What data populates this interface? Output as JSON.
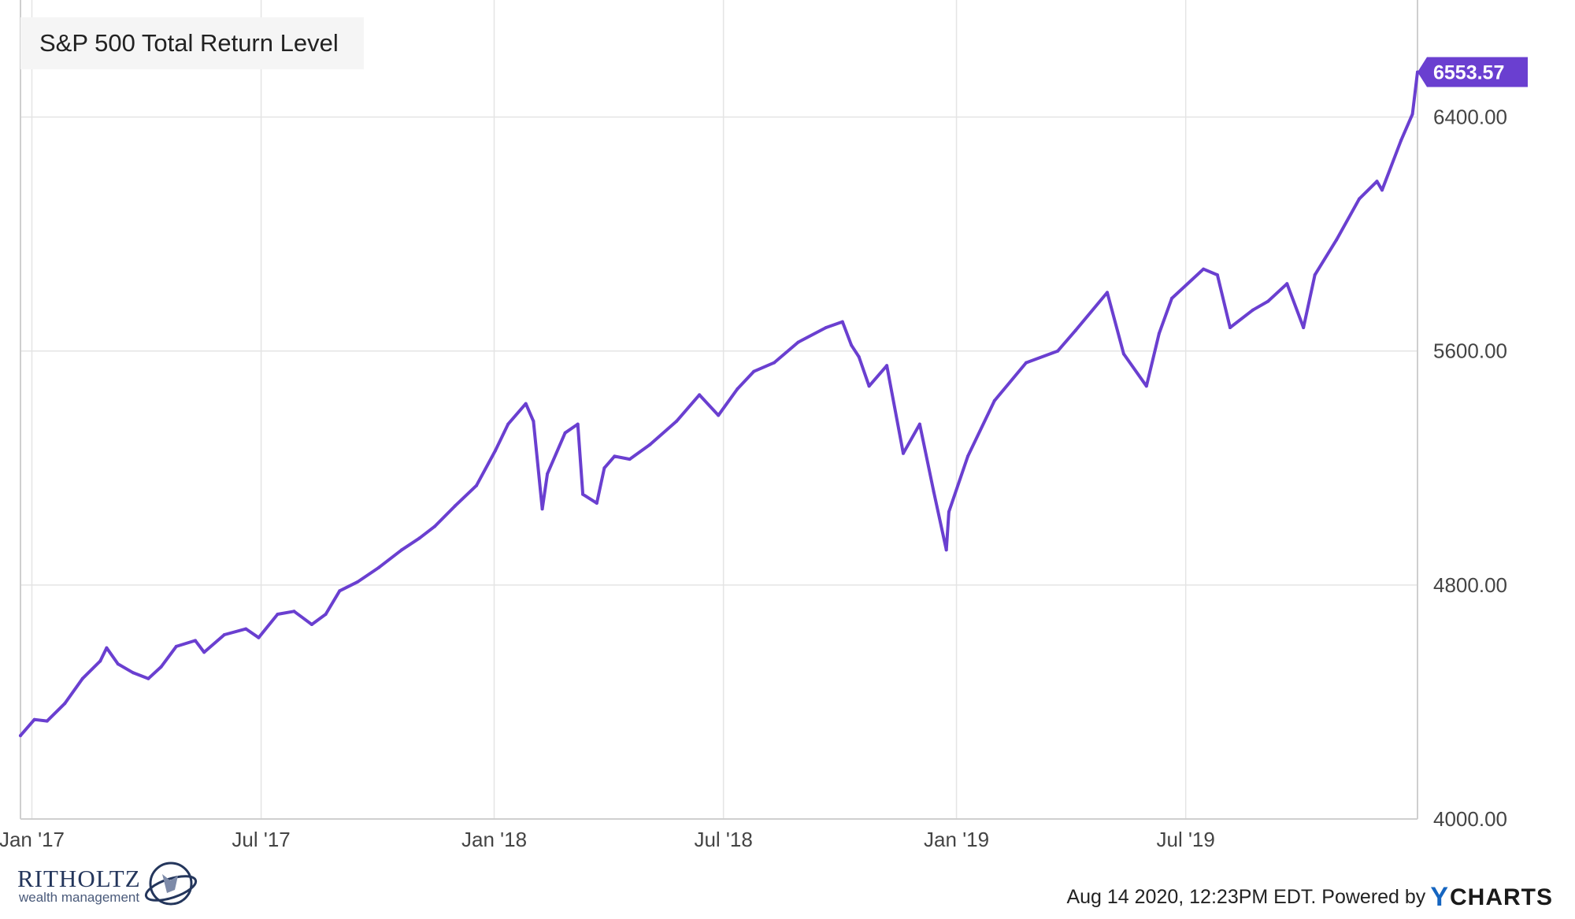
{
  "chart_data": {
    "type": "line",
    "title": "S&P 500 Total Return Level",
    "x_tick_labels": [
      "Jan '17",
      "Jul '17",
      "Jan '18",
      "Jul '18",
      "Jan '19",
      "Jul '19"
    ],
    "y_tick_labels": [
      "4000.00",
      "4800.00",
      "5600.00",
      "6400.00"
    ],
    "y_ticks": [
      4000,
      4800,
      5600,
      6400
    ],
    "ylim": [
      4000,
      6800
    ],
    "xlim": [
      "2016-12-23",
      "2019-12-31"
    ],
    "grid": true,
    "series": [
      {
        "color": "#6a3fd0",
        "last_value_label": "6553.57",
        "x": [
          "2016-12-23",
          "2017-01-03",
          "2017-01-13",
          "2017-01-27",
          "2017-02-10",
          "2017-02-24",
          "2017-03-01",
          "2017-03-10",
          "2017-03-22",
          "2017-04-03",
          "2017-04-13",
          "2017-04-25",
          "2017-05-10",
          "2017-05-17",
          "2017-06-02",
          "2017-06-19",
          "2017-06-29",
          "2017-07-14",
          "2017-07-27",
          "2017-08-10",
          "2017-08-21",
          "2017-09-01",
          "2017-09-15",
          "2017-10-02",
          "2017-10-20",
          "2017-11-03",
          "2017-11-15",
          "2017-12-01",
          "2017-12-18",
          "2018-01-02",
          "2018-01-12",
          "2018-01-26",
          "2018-02-01",
          "2018-02-08",
          "2018-02-12",
          "2018-02-26",
          "2018-03-08",
          "2018-03-12",
          "2018-03-23",
          "2018-03-29",
          "2018-04-06",
          "2018-04-18",
          "2018-05-04",
          "2018-05-25",
          "2018-06-12",
          "2018-06-27",
          "2018-07-12",
          "2018-07-25",
          "2018-08-10",
          "2018-08-29",
          "2018-09-20",
          "2018-10-03",
          "2018-10-10",
          "2018-10-16",
          "2018-10-24",
          "2018-11-07",
          "2018-11-20",
          "2018-12-03",
          "2018-12-14",
          "2018-12-24",
          "2018-12-26",
          "2019-01-10",
          "2019-01-31",
          "2019-02-25",
          "2019-03-22",
          "2019-04-05",
          "2019-04-30",
          "2019-05-13",
          "2019-05-31",
          "2019-06-10",
          "2019-06-20",
          "2019-07-15",
          "2019-07-26",
          "2019-08-05",
          "2019-08-23",
          "2019-09-04",
          "2019-09-19",
          "2019-10-02",
          "2019-10-11",
          "2019-10-28",
          "2019-11-15",
          "2019-11-29",
          "2019-12-03",
          "2019-12-18",
          "2019-12-27",
          "2019-12-31"
        ],
        "values": [
          4285,
          4340,
          4335,
          4395,
          4480,
          4540,
          4585,
          4530,
          4500,
          4480,
          4520,
          4590,
          4610,
          4570,
          4630,
          4650,
          4620,
          4700,
          4710,
          4665,
          4700,
          4780,
          4810,
          4860,
          4920,
          4960,
          5000,
          5070,
          5140,
          5260,
          5350,
          5420,
          5360,
          5060,
          5180,
          5320,
          5350,
          5110,
          5080,
          5200,
          5240,
          5230,
          5280,
          5360,
          5450,
          5380,
          5470,
          5530,
          5560,
          5630,
          5680,
          5700,
          5620,
          5580,
          5480,
          5550,
          5250,
          5350,
          5120,
          4920,
          5050,
          5240,
          5430,
          5560,
          5600,
          5670,
          5800,
          5590,
          5480,
          5660,
          5780,
          5880,
          5860,
          5680,
          5740,
          5770,
          5830,
          5680,
          5860,
          5980,
          6120,
          6180,
          6150,
          6320,
          6410,
          6553.57
        ]
      }
    ]
  },
  "footer": {
    "timestamp_text": "Aug 14 2020, 12:23PM EDT. Powered by",
    "ycharts_logo": "YCHARTS"
  },
  "branding": {
    "name": "RITHOLTZ",
    "subtitle": "wealth management"
  }
}
